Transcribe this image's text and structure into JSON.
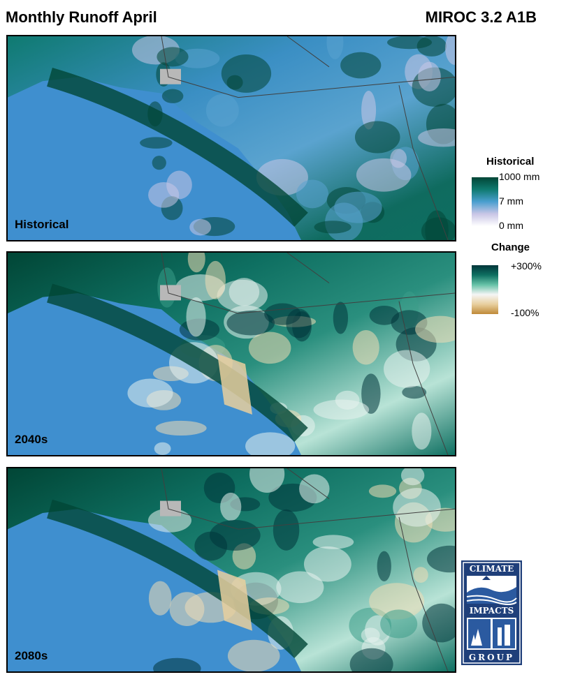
{
  "header": {
    "title": "Monthly Runoff April",
    "model": "MIROC 3.2 A1B"
  },
  "panels": [
    {
      "label": "Historical",
      "scale": "historical"
    },
    {
      "label": "2040s",
      "scale": "change"
    },
    {
      "label": "2080s",
      "scale": "change"
    }
  ],
  "legend": {
    "historical": {
      "title": "Historical",
      "ticks": [
        "1000 mm",
        "7 mm",
        "0 mm"
      ],
      "colors": [
        "#014636",
        "#0f7a70",
        "#4a9fcf",
        "#c9c6e6",
        "#ffffff"
      ]
    },
    "change": {
      "title": "Change",
      "ticks": [
        "+300%",
        "-100%"
      ],
      "colors": [
        "#00353a",
        "#0e6f61",
        "#66c2a7",
        "#f5f5f5",
        "#e8cf9e",
        "#bf8a38"
      ]
    }
  },
  "colors": {
    "ocean": "#3f8fcf",
    "no_data": "#b8b8b8",
    "boundary": "#404040"
  },
  "logo": {
    "top_text": "CLIMATE",
    "mid_text": "IMPACTS",
    "bottom_text": "GROUP"
  }
}
